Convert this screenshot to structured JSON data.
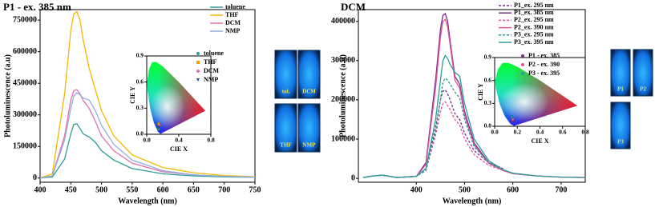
{
  "chart_data": [
    {
      "type": "line",
      "title": "P1 - ex. 385 nm",
      "x_label": "Wavelength (nm)",
      "y_label": "Photoluminescence (a.u)",
      "x": [
        400,
        420,
        440,
        450,
        455,
        460,
        465,
        470,
        480,
        490,
        500,
        520,
        550,
        600,
        650,
        700,
        750
      ],
      "series": [
        {
          "name": "toluene",
          "color": "#2a9d96",
          "style": "solid",
          "values": [
            0,
            5000,
            90000,
            210000,
            255000,
            258000,
            235000,
            210000,
            195000,
            170000,
            130000,
            85000,
            45000,
            20000,
            10000,
            5000,
            3000
          ]
        },
        {
          "name": "THF",
          "color": "#f5b800",
          "style": "solid",
          "values": [
            0,
            20000,
            400000,
            700000,
            780000,
            790000,
            750000,
            660000,
            520000,
            420000,
            320000,
            200000,
            110000,
            50000,
            25000,
            12000,
            6000
          ]
        },
        {
          "name": "DCM",
          "color": "#e070b0",
          "style": "solid",
          "values": [
            0,
            10000,
            200000,
            370000,
            415000,
            420000,
            400000,
            370000,
            330000,
            270000,
            200000,
            130000,
            70000,
            30000,
            15000,
            8000,
            4000
          ]
        },
        {
          "name": "NMP",
          "color": "#8fb0dc",
          "style": "solid",
          "values": [
            0,
            10000,
            180000,
            330000,
            390000,
            405000,
            395000,
            380000,
            370000,
            320000,
            250000,
            160000,
            85000,
            35000,
            15000,
            8000,
            4000
          ]
        }
      ],
      "xlim": [
        400,
        750
      ],
      "xticks": [
        400,
        450,
        500,
        550,
        600,
        650,
        700,
        750
      ],
      "ylim": [
        -20000,
        800000
      ],
      "yticks": [
        0,
        150000,
        300000,
        450000,
        600000,
        750000
      ],
      "legend": "upper right",
      "annotations": [
        "tol.",
        "DCM",
        "THF",
        "NMP"
      ]
    },
    {
      "type": "scatter",
      "x_label": "CIE X",
      "y_label": "CIE Y",
      "series": [
        {
          "name": "toluene",
          "color": "#2a9d96",
          "marker": "circle",
          "x": [
            0.15
          ],
          "values": [
            0.06
          ]
        },
        {
          "name": "THF",
          "color": "#f5a000",
          "marker": "square",
          "x": [
            0.15
          ],
          "values": [
            0.12
          ]
        },
        {
          "name": "DCM",
          "color": "#e070b0",
          "marker": "circle",
          "x": [
            0.16
          ],
          "values": [
            0.1
          ]
        },
        {
          "name": "NMP",
          "color": "#2050a0",
          "marker": "triangle",
          "x": [
            0.15
          ],
          "values": [
            0.08
          ]
        }
      ],
      "xlim": [
        0,
        0.8
      ],
      "xticks": [
        {
          "value": 0,
          "label": "0.0"
        },
        0.4,
        0.8
      ],
      "ylim": [
        0,
        0.9
      ],
      "yticks": [
        {
          "value": 0,
          "label": "0.0"
        },
        0.3,
        0.6,
        0.9
      ],
      "legend": "upper right"
    },
    {
      "type": "line",
      "title": "DCM",
      "x_label": "Wavelength (nm)",
      "y_label": "Photoluminescence (a.u)",
      "x": [
        290,
        310,
        330,
        360,
        400,
        420,
        440,
        450,
        455,
        460,
        465,
        470,
        480,
        490,
        500,
        520,
        550,
        580,
        600,
        650,
        700,
        750
      ],
      "series": [
        {
          "name": "P1_ex. 295 nm",
          "color": "#7b2d8b",
          "style": "dashed",
          "values": [
            2000,
            6000,
            8000,
            2000,
            5000,
            25000,
            130000,
            200000,
            222000,
            225000,
            215000,
            200000,
            165000,
            150000,
            115000,
            70000,
            40000,
            25000,
            null,
            null,
            null,
            null
          ]
        },
        {
          "name": "P1_ex. 385 nm",
          "color": "#7b2d8b",
          "style": "solid",
          "values": [
            2000,
            6000,
            8000,
            2000,
            5000,
            40000,
            250000,
            380000,
            415000,
            420000,
            400000,
            350000,
            260000,
            240000,
            170000,
            90000,
            40000,
            20000,
            12000,
            6000,
            3000,
            2000
          ]
        },
        {
          "name": "P2_ex. 295 nm",
          "color": "#e0529c",
          "style": "dashed",
          "values": [
            2000,
            6000,
            8000,
            2000,
            5000,
            20000,
            110000,
            170000,
            190000,
            195000,
            185000,
            175000,
            150000,
            135000,
            100000,
            60000,
            33000,
            20000,
            null,
            null,
            null,
            null
          ]
        },
        {
          "name": "P2_ex. 390 nm",
          "color": "#e0529c",
          "style": "solid",
          "values": [
            2000,
            6000,
            8000,
            2000,
            5000,
            35000,
            230000,
            360000,
            400000,
            405000,
            385000,
            340000,
            250000,
            230000,
            160000,
            85000,
            38000,
            20000,
            12000,
            6000,
            3000,
            2000
          ]
        },
        {
          "name": "P3_ex. 295 nm",
          "color": "#2a9d96",
          "style": "dashed",
          "values": [
            2000,
            6000,
            8000,
            2000,
            5000,
            20000,
            120000,
            200000,
            245000,
            255000,
            250000,
            240000,
            220000,
            205000,
            150000,
            80000,
            40000,
            22000,
            null,
            null,
            null,
            null
          ]
        },
        {
          "name": "P3_ex. 395 nm",
          "color": "#2a9d96",
          "style": "solid",
          "values": [
            2000,
            6000,
            8000,
            2000,
            5000,
            25000,
            150000,
            250000,
            300000,
            313000,
            305000,
            290000,
            270000,
            260000,
            190000,
            100000,
            45000,
            22000,
            13000,
            6000,
            3000,
            2000
          ]
        }
      ],
      "xlim": [
        280,
        750
      ],
      "xticks": [
        400,
        500,
        600,
        700
      ],
      "ylim": [
        -10000,
        430000
      ],
      "yticks": [
        0,
        100000,
        200000,
        300000,
        400000
      ],
      "legend": "upper right",
      "annotations": [
        "P1",
        "P2",
        "P3"
      ]
    },
    {
      "type": "scatter",
      "x_label": "CIE X",
      "y_label": "CIE Y",
      "series": [
        {
          "name": "P1 - ex. 385",
          "color": "#7b2d8b",
          "marker": "circle",
          "x": [
            0.16
          ],
          "values": [
            0.07
          ]
        },
        {
          "name": "P2 - ex. 390",
          "color": "#e0529c",
          "marker": "circle",
          "x": [
            0.16
          ],
          "values": [
            0.09
          ]
        },
        {
          "name": "P3 - ex. 395",
          "color": "#2a9d96",
          "marker": "circle",
          "x": [
            0.15
          ],
          "values": [
            0.12
          ]
        }
      ],
      "xlim": [
        0,
        0.8
      ],
      "xticks": [
        {
          "value": 0,
          "label": "0.0"
        },
        0.2,
        0.4,
        0.6,
        0.8
      ],
      "ylim": [
        0,
        0.9
      ],
      "yticks": [
        {
          "value": 0,
          "label": "0.0"
        },
        0.3,
        0.6,
        0.9
      ],
      "legend": "upper right"
    }
  ]
}
